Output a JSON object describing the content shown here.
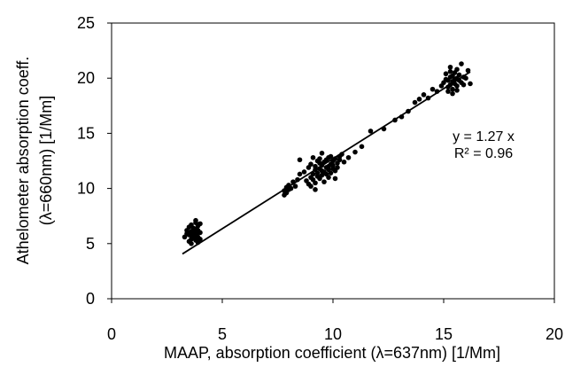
{
  "chart_data": {
    "type": "scatter",
    "title": "",
    "xlabel": "MAAP, absorption coefficient (λ=637nm) [1/Mm]",
    "ylabel_lines": [
      "Athelometer absorption coeff.",
      "(λ=660nm) [1/Mm]"
    ],
    "xlim": [
      0,
      20
    ],
    "ylim": [
      0,
      25
    ],
    "xticks": [
      0,
      5,
      10,
      15,
      20
    ],
    "yticks": [
      0,
      5,
      10,
      15,
      20,
      25
    ],
    "grid": false,
    "fit": {
      "type": "line-through-origin",
      "slope": 1.27,
      "x_range": [
        3.2,
        16.2
      ]
    },
    "annotations": [
      "y = 1.27 x",
      "R² = 0.96"
    ],
    "series": [
      {
        "points": [
          [
            3.3,
            5.6
          ],
          [
            3.4,
            6.2
          ],
          [
            3.4,
            5.9
          ],
          [
            3.5,
            5.2
          ],
          [
            3.5,
            6.5
          ],
          [
            3.5,
            5.8
          ],
          [
            3.6,
            5.0
          ],
          [
            3.6,
            5.4
          ],
          [
            3.6,
            6.1
          ],
          [
            3.6,
            6.7
          ],
          [
            3.7,
            5.5
          ],
          [
            3.7,
            6.0
          ],
          [
            3.7,
            6.4
          ],
          [
            3.7,
            5.7
          ],
          [
            3.8,
            5.3
          ],
          [
            3.8,
            5.9
          ],
          [
            3.8,
            6.3
          ],
          [
            3.8,
            6.9
          ],
          [
            3.8,
            7.1
          ],
          [
            3.9,
            5.6
          ],
          [
            3.9,
            6.2
          ],
          [
            3.9,
            6.6
          ],
          [
            3.9,
            5.1
          ],
          [
            4.0,
            6.0
          ],
          [
            4.0,
            6.8
          ],
          [
            4.0,
            5.4
          ],
          [
            3.5,
            6.0
          ],
          [
            3.6,
            5.7
          ],
          [
            3.7,
            6.2
          ],
          [
            3.9,
            6.0
          ],
          [
            7.8,
            9.4
          ],
          [
            7.8,
            9.8
          ],
          [
            7.9,
            10.1
          ],
          [
            7.9,
            9.6
          ],
          [
            8.0,
            10.3
          ],
          [
            8.0,
            9.9
          ],
          [
            8.1,
            10.0
          ],
          [
            8.2,
            10.6
          ],
          [
            8.3,
            10.2
          ],
          [
            8.4,
            10.8
          ],
          [
            8.5,
            11.3
          ],
          [
            8.5,
            12.6
          ],
          [
            8.7,
            11.5
          ],
          [
            8.8,
            10.7
          ],
          [
            8.9,
            11.9
          ],
          [
            8.9,
            10.4
          ],
          [
            9.0,
            11.0
          ],
          [
            9.0,
            12.2
          ],
          [
            9.1,
            11.3
          ],
          [
            9.1,
            10.8
          ],
          [
            9.2,
            11.7
          ],
          [
            9.2,
            12.0
          ],
          [
            9.2,
            10.5
          ],
          [
            9.3,
            11.4
          ],
          [
            9.3,
            12.5
          ],
          [
            9.3,
            11.1
          ],
          [
            9.4,
            11.8
          ],
          [
            9.4,
            12.3
          ],
          [
            9.4,
            10.9
          ],
          [
            9.5,
            11.6
          ],
          [
            9.5,
            12.1
          ],
          [
            9.5,
            11.2
          ],
          [
            9.6,
            12.4
          ],
          [
            9.6,
            11.5
          ],
          [
            9.6,
            10.6
          ],
          [
            9.7,
            11.9
          ],
          [
            9.7,
            12.6
          ],
          [
            9.7,
            11.3
          ],
          [
            9.8,
            12.0
          ],
          [
            9.8,
            12.8
          ],
          [
            9.8,
            11.7
          ],
          [
            9.9,
            12.2
          ],
          [
            9.9,
            11.4
          ],
          [
            9.9,
            12.9
          ],
          [
            10.0,
            12.5
          ],
          [
            10.0,
            11.8
          ],
          [
            10.0,
            12.1
          ],
          [
            10.1,
            12.7
          ],
          [
            10.1,
            11.6
          ],
          [
            10.2,
            12.3
          ],
          [
            10.2,
            11.9
          ],
          [
            10.3,
            12.6
          ],
          [
            10.3,
            12.9
          ],
          [
            9.0,
            10.2
          ],
          [
            9.2,
            9.9
          ],
          [
            9.5,
            13.2
          ],
          [
            9.1,
            12.8
          ],
          [
            10.4,
            13.1
          ],
          [
            10.5,
            12.4
          ],
          [
            9.4,
            12.7
          ],
          [
            9.8,
            11.0
          ],
          [
            10.1,
            10.9
          ],
          [
            10.7,
            12.8
          ],
          [
            11.0,
            13.3
          ],
          [
            11.3,
            13.8
          ],
          [
            11.7,
            15.2
          ],
          [
            12.3,
            15.4
          ],
          [
            12.8,
            16.2
          ],
          [
            13.1,
            16.5
          ],
          [
            13.4,
            17.0
          ],
          [
            13.7,
            17.8
          ],
          [
            13.9,
            18.1
          ],
          [
            14.1,
            18.5
          ],
          [
            14.3,
            18.2
          ],
          [
            14.5,
            19.0
          ],
          [
            14.7,
            18.8
          ],
          [
            14.9,
            19.3
          ],
          [
            15.0,
            19.6
          ],
          [
            15.1,
            19.9
          ],
          [
            15.1,
            20.4
          ],
          [
            15.2,
            19.2
          ],
          [
            15.2,
            19.8
          ],
          [
            15.3,
            20.1
          ],
          [
            15.3,
            19.4
          ],
          [
            15.3,
            20.6
          ],
          [
            15.4,
            19.7
          ],
          [
            15.4,
            20.2
          ],
          [
            15.4,
            19.0
          ],
          [
            15.5,
            19.9
          ],
          [
            15.5,
            20.5
          ],
          [
            15.5,
            19.5
          ],
          [
            15.6,
            20.0
          ],
          [
            15.6,
            19.3
          ],
          [
            15.6,
            20.8
          ],
          [
            15.7,
            19.8
          ],
          [
            15.7,
            20.3
          ],
          [
            15.8,
            21.3
          ],
          [
            15.8,
            19.6
          ],
          [
            15.9,
            20.1
          ],
          [
            15.9,
            19.4
          ],
          [
            16.0,
            20.0
          ],
          [
            16.1,
            20.7
          ],
          [
            16.2,
            19.5
          ],
          [
            15.2,
            18.8
          ],
          [
            15.4,
            18.6
          ],
          [
            15.6,
            18.9
          ],
          [
            15.3,
            21.0
          ]
        ]
      }
    ]
  }
}
